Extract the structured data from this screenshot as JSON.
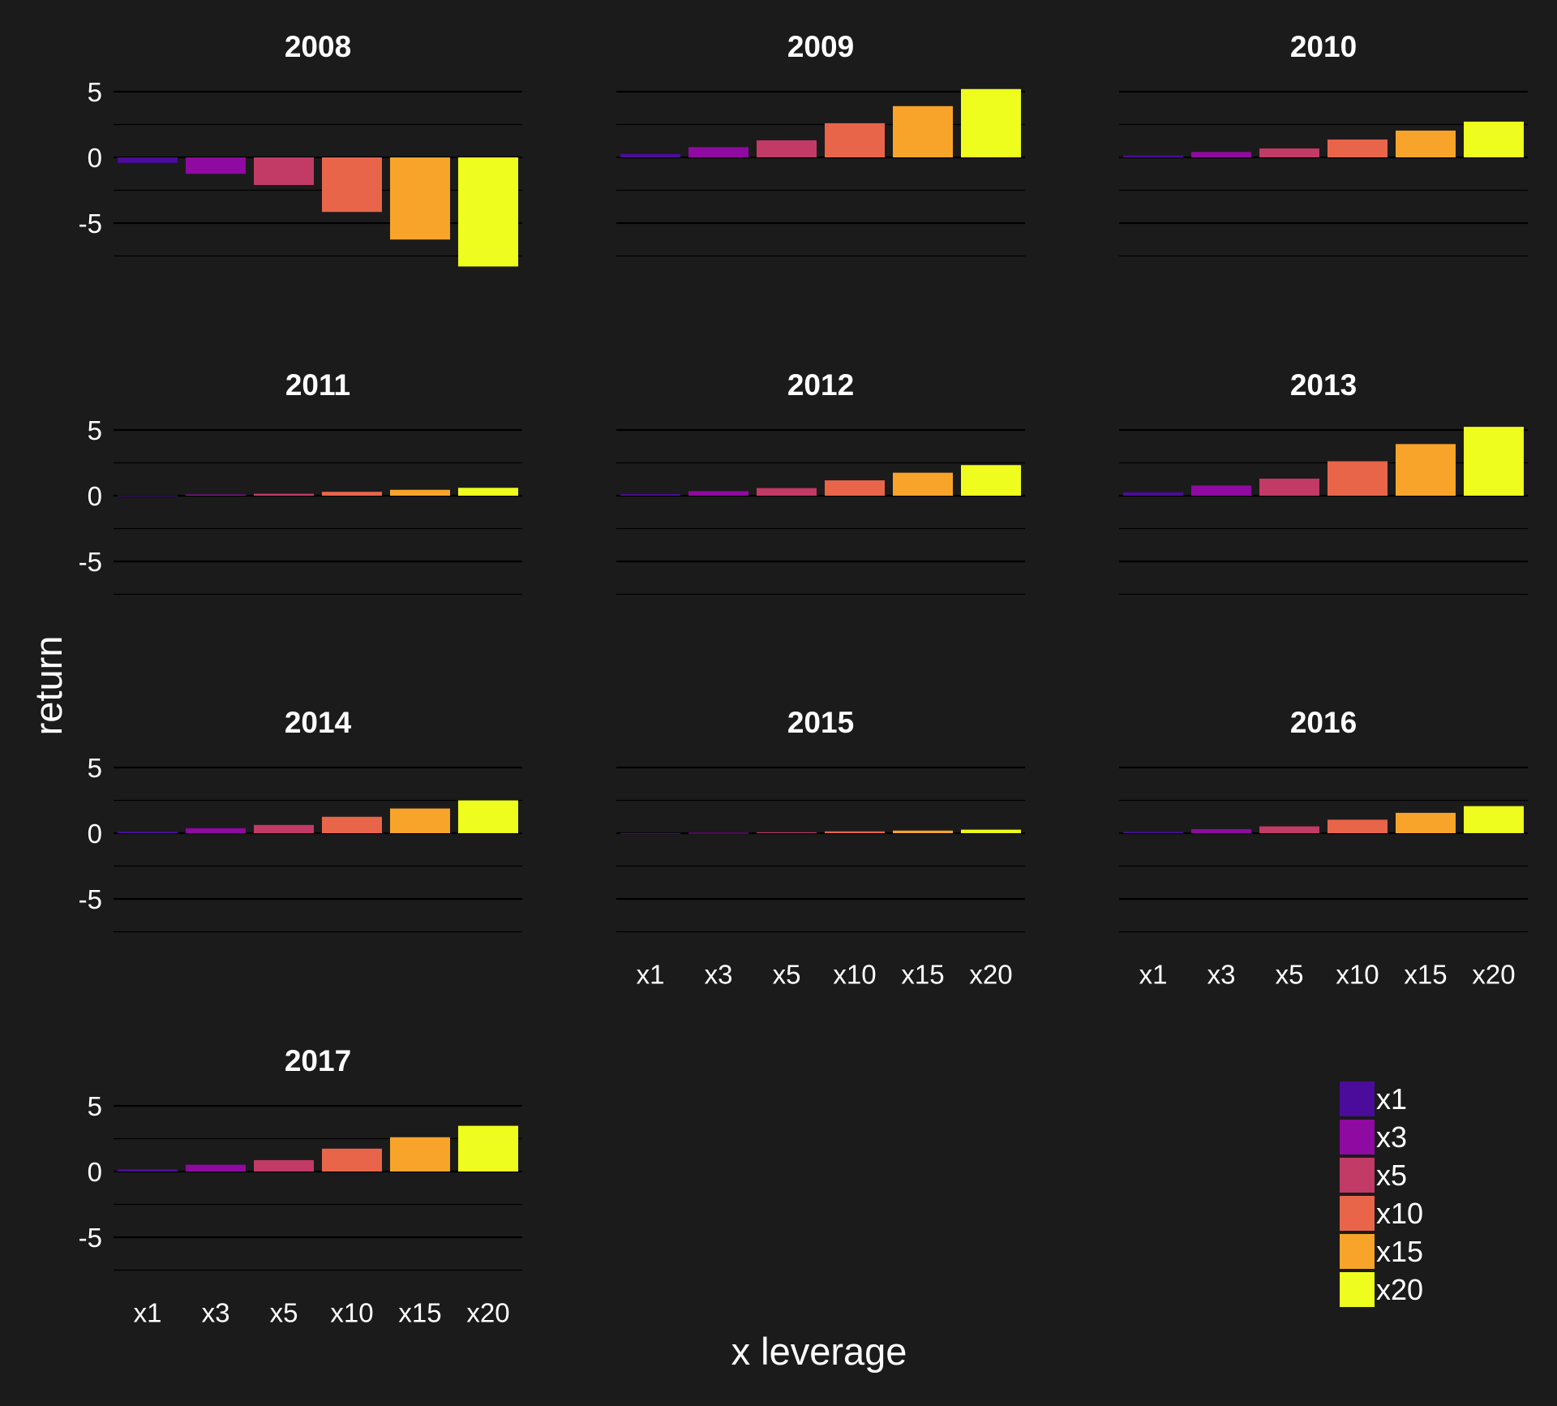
{
  "chart_data": {
    "type": "bar",
    "layout": "faceted",
    "xlabel": "x leverage",
    "ylabel": "return",
    "ylim": [
      -7.5,
      5
    ],
    "yticks": [
      5,
      0,
      -5
    ],
    "ytick_labels": [
      "5",
      "0",
      "-5"
    ],
    "grid": true,
    "legend": "bottom-right",
    "categories": [
      "x1",
      "x3",
      "x5",
      "x10",
      "x15",
      "x20"
    ],
    "colors": {
      "x1": "#4b0c9b",
      "x3": "#8f0aa0",
      "x5": "#c23a66",
      "x10": "#e8654a",
      "x15": "#f8a42a",
      "x20": "#eefc1e"
    },
    "background": "#1b1b1b",
    "panels": [
      {
        "title": "2008",
        "values": [
          -0.42,
          -1.25,
          -2.1,
          -4.15,
          -6.25,
          -8.3
        ]
      },
      {
        "title": "2009",
        "values": [
          0.26,
          0.78,
          1.3,
          2.6,
          3.9,
          5.2
        ]
      },
      {
        "title": "2010",
        "values": [
          0.14,
          0.41,
          0.68,
          1.36,
          2.04,
          2.72
        ]
      },
      {
        "title": "2011",
        "values": [
          0.03,
          0.09,
          0.15,
          0.3,
          0.45,
          0.6
        ]
      },
      {
        "title": "2012",
        "values": [
          0.12,
          0.35,
          0.58,
          1.17,
          1.75,
          2.33
        ]
      },
      {
        "title": "2013",
        "values": [
          0.26,
          0.78,
          1.3,
          2.62,
          3.93,
          5.24
        ]
      },
      {
        "title": "2014",
        "values": [
          0.12,
          0.38,
          0.63,
          1.25,
          1.88,
          2.5
        ]
      },
      {
        "title": "2015",
        "values": [
          0.01,
          0.04,
          0.07,
          0.14,
          0.2,
          0.27
        ]
      },
      {
        "title": "2016",
        "values": [
          0.1,
          0.31,
          0.52,
          1.03,
          1.55,
          2.06
        ]
      },
      {
        "title": "2017",
        "values": [
          0.17,
          0.52,
          0.87,
          1.74,
          2.61,
          3.48
        ]
      }
    ]
  }
}
